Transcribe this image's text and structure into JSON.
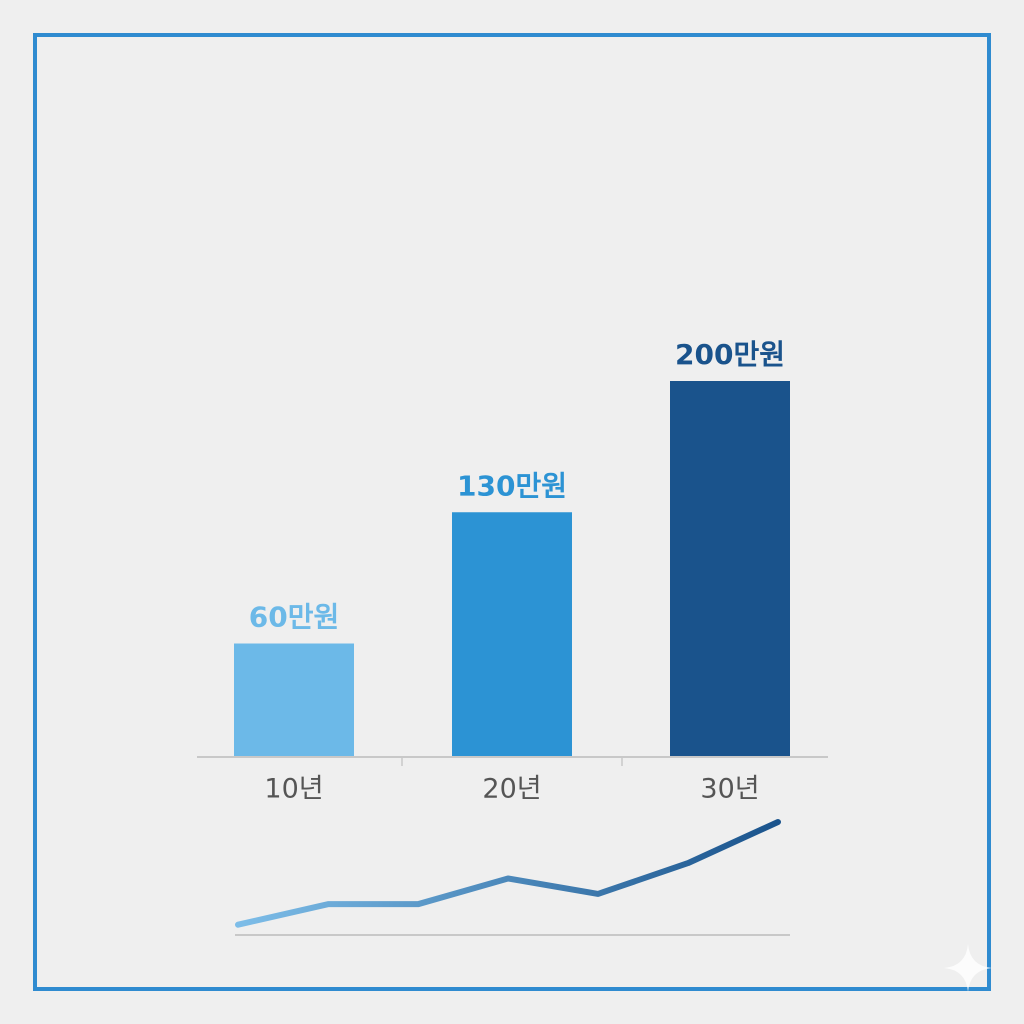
{
  "chart_data": [
    {
      "type": "bar",
      "categories": [
        "10년",
        "20년",
        "30년"
      ],
      "values": [
        60,
        130,
        200
      ],
      "value_labels": [
        "60만원",
        "130만원",
        "200만원"
      ],
      "colors": [
        "#6cb9e8",
        "#2c93d4",
        "#1a538c"
      ],
      "ylim": [
        0,
        200
      ]
    },
    {
      "type": "line",
      "x": [
        1,
        2,
        3,
        4,
        5,
        6,
        7
      ],
      "values": [
        1,
        3,
        3,
        5.5,
        4,
        7,
        11
      ],
      "colors": [
        "#7dbde8",
        "#1a538c"
      ],
      "xlim": [
        1,
        7
      ],
      "ylim": [
        0,
        11
      ]
    }
  ]
}
